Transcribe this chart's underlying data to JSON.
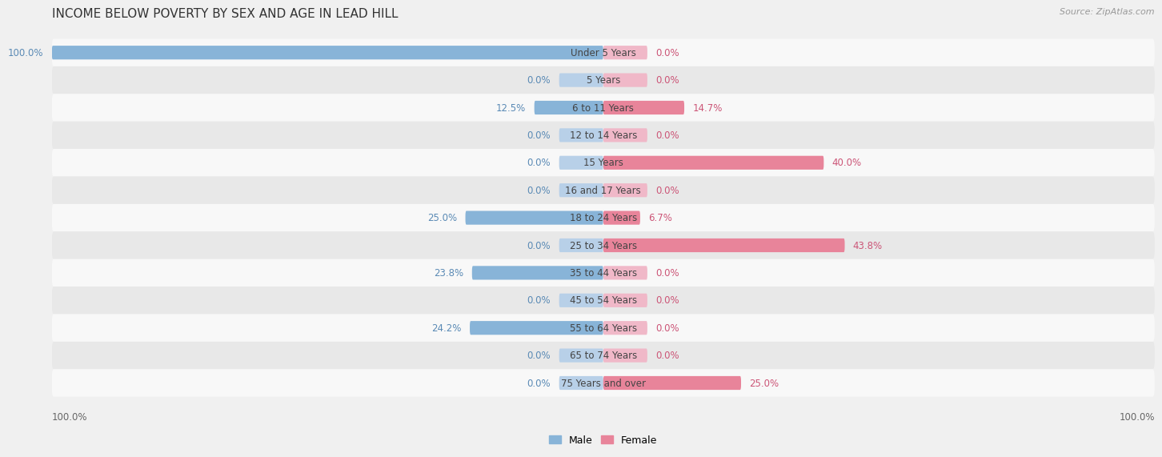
{
  "title": "INCOME BELOW POVERTY BY SEX AND AGE IN LEAD HILL",
  "source": "Source: ZipAtlas.com",
  "categories": [
    "Under 5 Years",
    "5 Years",
    "6 to 11 Years",
    "12 to 14 Years",
    "15 Years",
    "16 and 17 Years",
    "18 to 24 Years",
    "25 to 34 Years",
    "35 to 44 Years",
    "45 to 54 Years",
    "55 to 64 Years",
    "65 to 74 Years",
    "75 Years and over"
  ],
  "male": [
    100.0,
    0.0,
    12.5,
    0.0,
    0.0,
    0.0,
    25.0,
    0.0,
    23.8,
    0.0,
    24.2,
    0.0,
    0.0
  ],
  "female": [
    0.0,
    0.0,
    14.7,
    0.0,
    40.0,
    0.0,
    6.7,
    43.8,
    0.0,
    0.0,
    0.0,
    0.0,
    25.0
  ],
  "male_color": "#88b4d8",
  "female_color": "#e8849a",
  "male_light_color": "#b8d0e8",
  "female_light_color": "#f0b8c8",
  "male_label_color": "#5a8ab5",
  "female_label_color": "#cc5577",
  "bg_color": "#f0f0f0",
  "row_bg_color_odd": "#f8f8f8",
  "row_bg_color_even": "#e8e8e8",
  "xlim": 100.0,
  "bar_height": 0.5,
  "title_fontsize": 11,
  "label_fontsize": 8.5,
  "category_fontsize": 8.5,
  "legend_fontsize": 9,
  "source_fontsize": 8
}
